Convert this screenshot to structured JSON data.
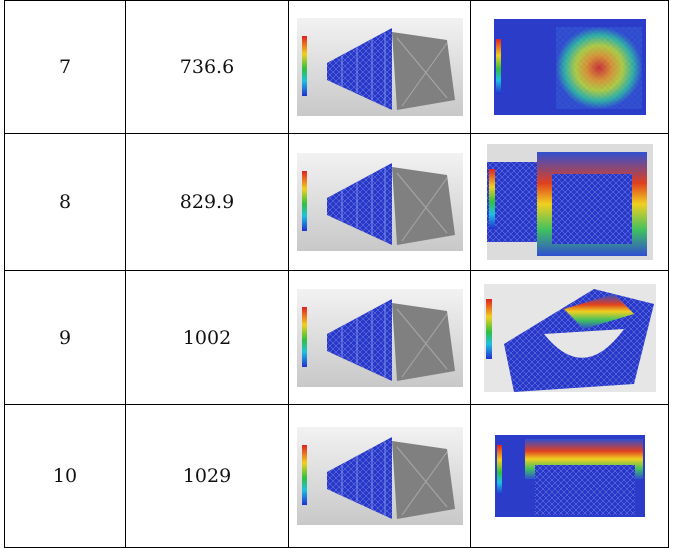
{
  "table": {
    "rows": [
      [
        "7",
        "736.6"
      ],
      [
        "8",
        "829.9"
      ],
      [
        "9",
        "1002"
      ],
      [
        "10",
        "1029"
      ]
    ]
  }
}
